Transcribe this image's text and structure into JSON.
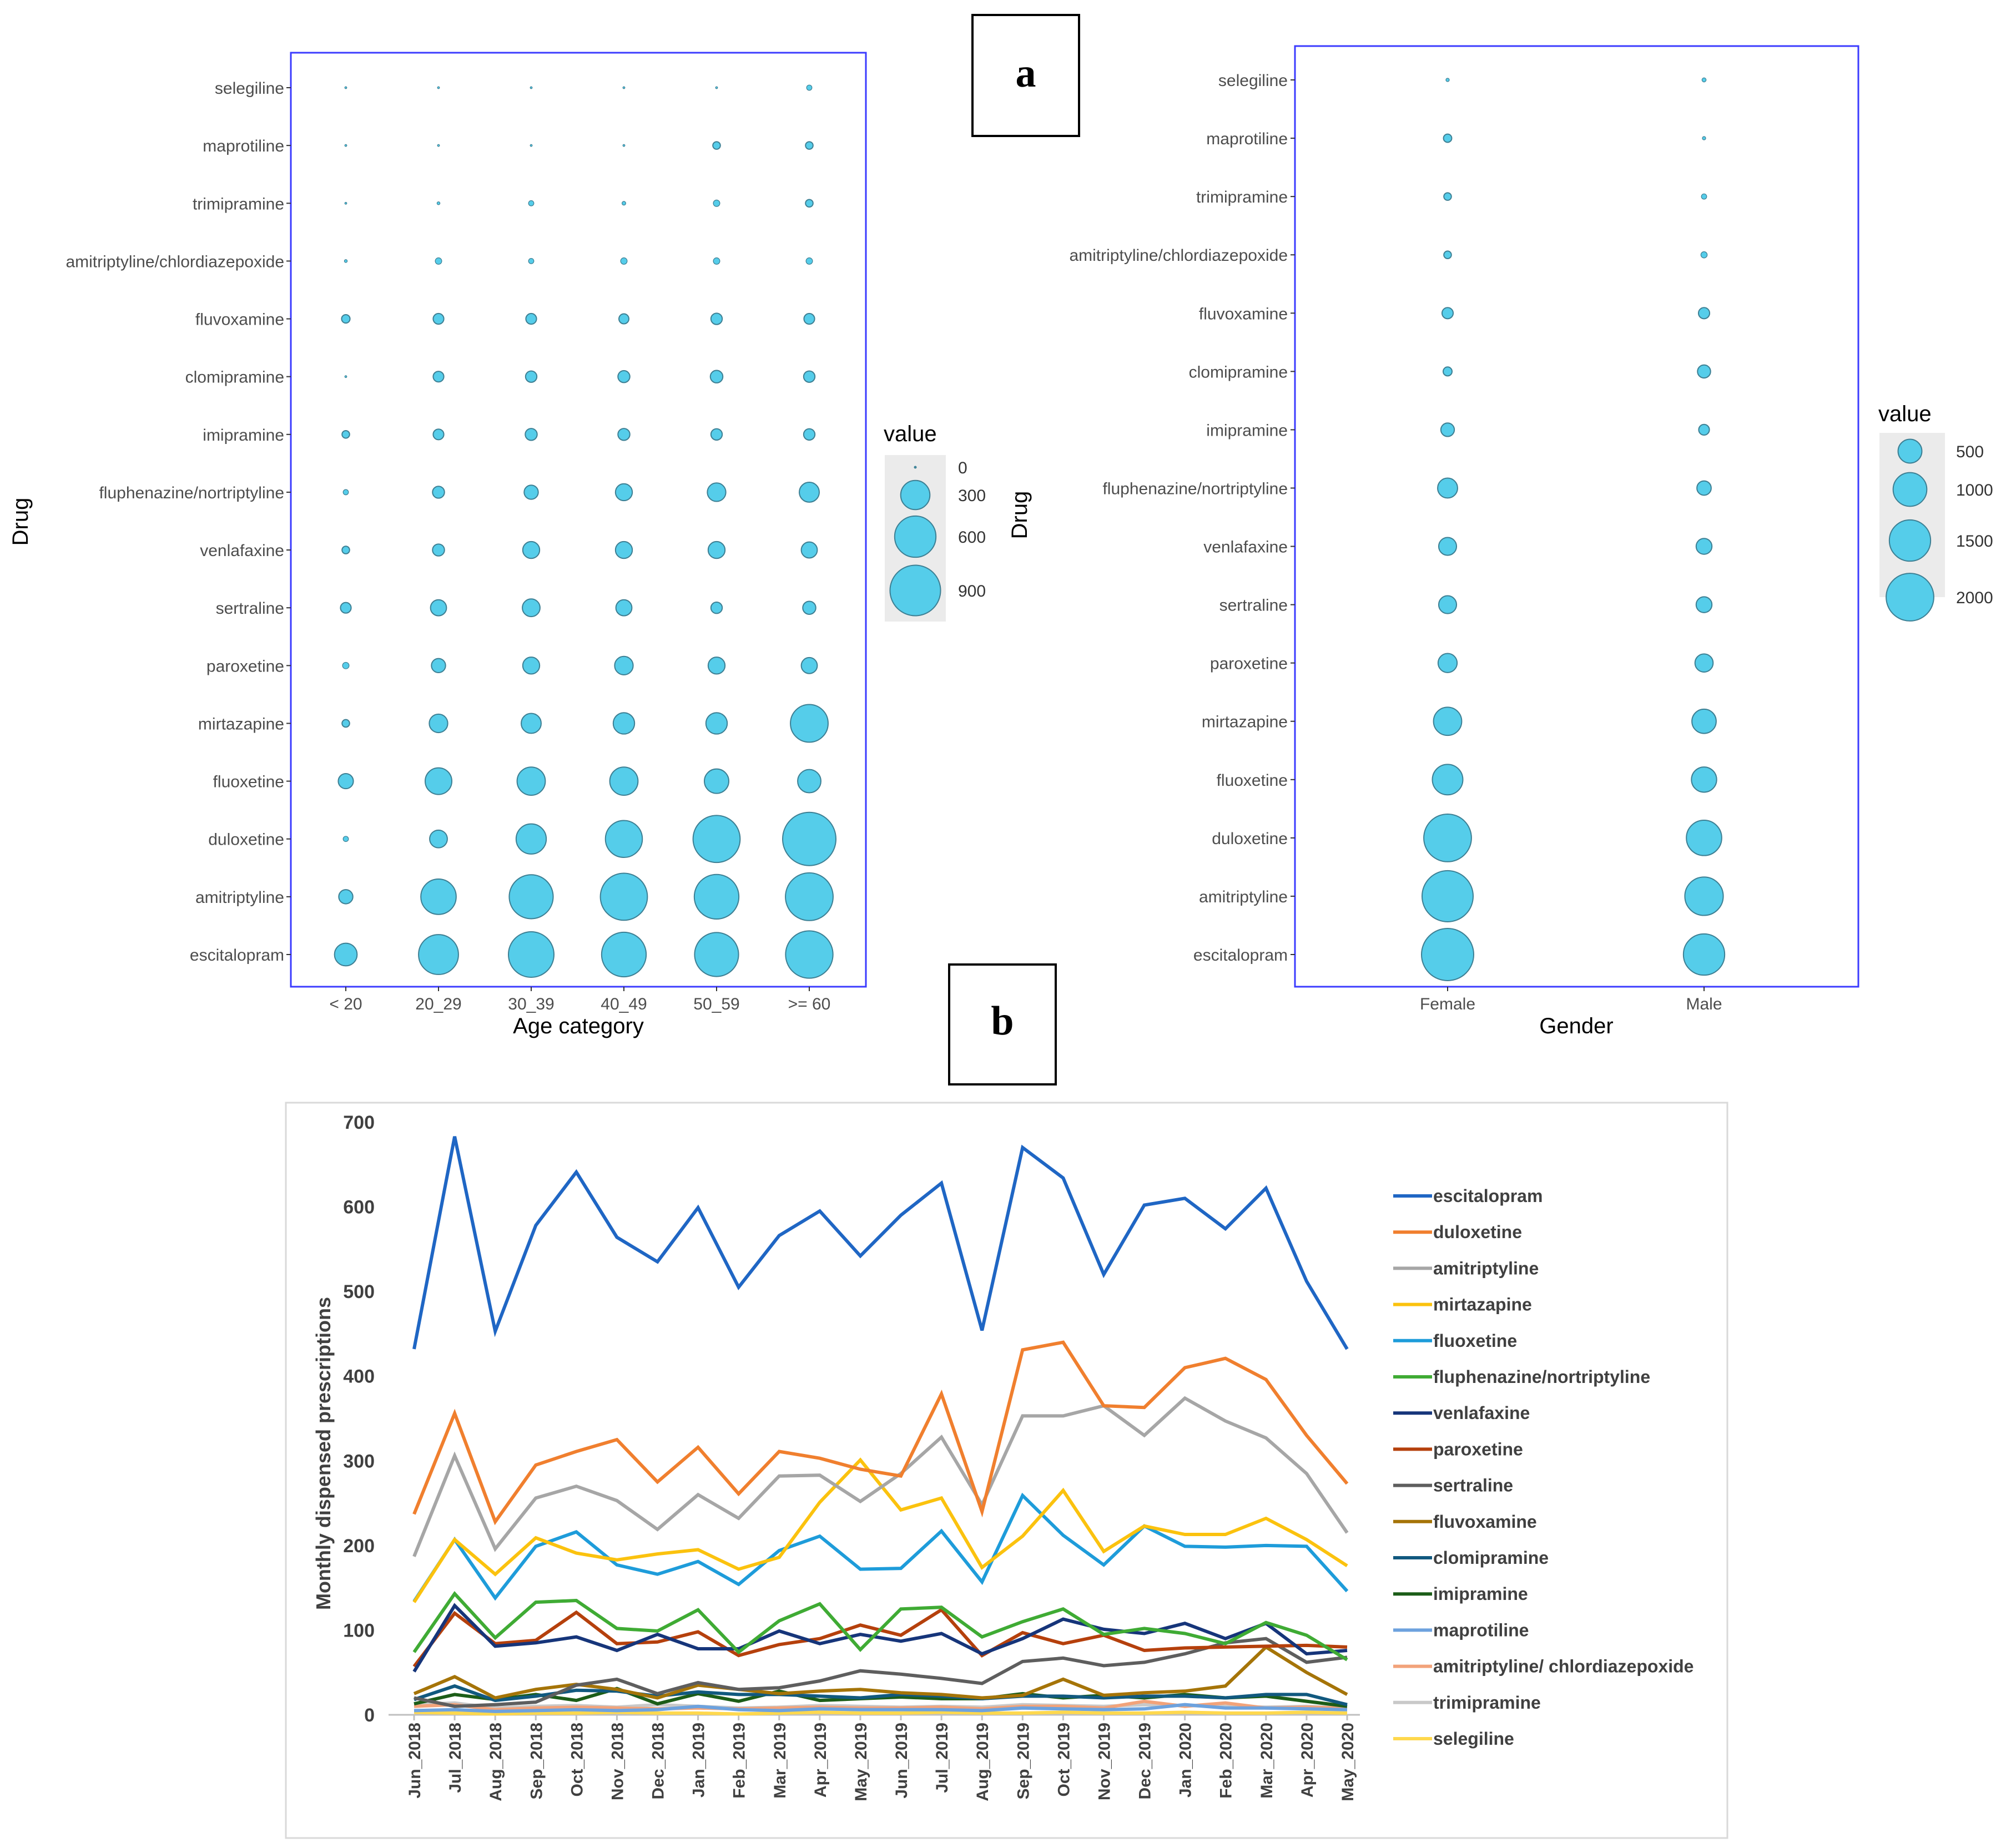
{
  "panel_labels": {
    "a": "a",
    "b": "b"
  },
  "colors": {
    "bubble_fill": "#55cdea",
    "bubble_stroke": "#3d7f93",
    "frame": "#3b3bff",
    "axis_text": "#4d4d4d",
    "legend_bg": "#ebebeb",
    "line_axis": "#bfbfbf",
    "line_panel_border": "#d9d9d9"
  },
  "chart_data": [
    {
      "id": "age",
      "type": "scatter",
      "title": "",
      "xlabel": "Age category",
      "ylabel": "Drug",
      "categories": [
        "< 20",
        "20_29",
        "30_39",
        "40_49",
        "50_59",
        ">= 60"
      ],
      "drugs": [
        "selegiline",
        "maprotiline",
        "trimipramine",
        "amitriptyline/chlordiazepoxide",
        "fluvoxamine",
        "clomipramine",
        "imipramine",
        "fluphenazine/nortriptyline",
        "venlafaxine",
        "sertraline",
        "paroxetine",
        "mirtazapine",
        "fluoxetine",
        "duloxetine",
        "amitriptyline",
        "escitalopram"
      ],
      "values": [
        [
          0,
          0,
          0,
          1,
          1,
          10
        ],
        [
          0,
          0,
          1,
          1,
          20,
          20
        ],
        [
          0,
          3,
          10,
          5,
          15,
          20
        ],
        [
          3,
          15,
          10,
          15,
          15,
          15
        ],
        [
          25,
          40,
          40,
          35,
          45,
          40
        ],
        [
          1,
          40,
          45,
          50,
          55,
          45
        ],
        [
          20,
          40,
          50,
          50,
          45,
          45
        ],
        [
          10,
          50,
          70,
          100,
          120,
          140
        ],
        [
          20,
          50,
          100,
          100,
          100,
          90
        ],
        [
          40,
          90,
          110,
          90,
          45,
          60
        ],
        [
          15,
          70,
          100,
          120,
          100,
          90
        ],
        [
          20,
          120,
          140,
          160,
          160,
          500
        ],
        [
          80,
          250,
          280,
          280,
          210,
          190
        ],
        [
          10,
          110,
          320,
          480,
          780,
          1000
        ],
        [
          70,
          440,
          680,
          780,
          700,
          800
        ],
        [
          180,
          560,
          730,
          700,
          680,
          790
        ]
      ],
      "legend": {
        "title": "value",
        "breaks": [
          0,
          300,
          600,
          900
        ],
        "labels": [
          "0",
          "300",
          "600",
          "900"
        ],
        "max_value": 1000
      }
    },
    {
      "id": "gender",
      "type": "scatter",
      "title": "",
      "xlabel": "Gender",
      "ylabel": "Drug",
      "categories": [
        "Female",
        "Male"
      ],
      "drugs": [
        "selegiline",
        "maprotiline",
        "trimipramine",
        "amitriptyline/chlordiazepoxide",
        "fluvoxamine",
        "clomipramine",
        "imipramine",
        "fluphenazine/nortriptyline",
        "venlafaxine",
        "sertraline",
        "paroxetine",
        "mirtazapine",
        "fluoxetine",
        "duloxetine",
        "amitriptyline",
        "escitalopram"
      ],
      "values": [
        [
          10,
          15
        ],
        [
          60,
          10
        ],
        [
          50,
          25
        ],
        [
          50,
          35
        ],
        [
          110,
          110
        ],
        [
          70,
          150
        ],
        [
          160,
          100
        ],
        [
          350,
          180
        ],
        [
          280,
          220
        ],
        [
          280,
          220
        ],
        [
          320,
          290
        ],
        [
          700,
          520
        ],
        [
          820,
          560
        ],
        [
          2000,
          1100
        ],
        [
          2300,
          1300
        ],
        [
          2400,
          1500
        ]
      ],
      "legend": {
        "title": "value",
        "breaks": [
          500,
          1000,
          1500,
          2000
        ],
        "labels": [
          "500",
          "1000",
          "1500",
          "2000"
        ],
        "max_value": 2400
      }
    },
    {
      "id": "monthly",
      "type": "line",
      "title": "",
      "xlabel": "",
      "ylabel": "Monthly dispensed prescriptions",
      "ylim": [
        0,
        700
      ],
      "yticks": [
        0,
        100,
        200,
        300,
        400,
        500,
        600,
        700
      ],
      "categories": [
        "Jun_2018",
        "Jul_2018",
        "Aug_2018",
        "Sep_2018",
        "Oct_2018",
        "Nov_2018",
        "Dec_2018",
        "Jan_2019",
        "Feb_2019",
        "Mar_2019",
        "Apr_2019",
        "May_2019",
        "Jun_2019",
        "Jul_2019",
        "Aug_2019",
        "Sep_2019",
        "Oct_2019",
        "Nov_2019",
        "Dec_2019",
        "Jan_2020",
        "Feb_2020",
        "Mar_2020",
        "Apr_2020",
        "May_2020"
      ],
      "series": [
        {
          "name": "escitalopram",
          "color": "#1f66c4",
          "values": [
            432,
            683,
            453,
            578,
            641,
            564,
            535,
            599,
            505,
            566,
            595,
            542,
            590,
            628,
            454,
            670,
            634,
            520,
            602,
            610,
            574,
            622,
            512,
            432
          ]
        },
        {
          "name": "duloxetine",
          "color": "#f07f2e",
          "values": [
            237,
            356,
            228,
            295,
            311,
            325,
            275,
            316,
            261,
            311,
            303,
            290,
            282,
            379,
            240,
            431,
            440,
            365,
            363,
            410,
            421,
            396,
            330,
            273
          ]
        },
        {
          "name": "amitriptyline",
          "color": "#a6a6a6",
          "values": [
            187,
            306,
            196,
            256,
            270,
            253,
            219,
            260,
            232,
            282,
            283,
            252,
            285,
            328,
            248,
            353,
            353,
            365,
            330,
            374,
            347,
            327,
            285,
            215
          ]
        },
        {
          "name": "mirtazapine",
          "color": "#fbc20e",
          "values": [
            133,
            207,
            166,
            209,
            191,
            183,
            190,
            195,
            172,
            186,
            251,
            301,
            242,
            256,
            174,
            211,
            265,
            193,
            223,
            213,
            213,
            232,
            207,
            176
          ]
        },
        {
          "name": "fluoxetine",
          "color": "#1e9cda",
          "values": [
            134,
            207,
            138,
            199,
            216,
            177,
            166,
            181,
            154,
            194,
            211,
            172,
            173,
            217,
            157,
            259,
            212,
            177,
            223,
            199,
            198,
            200,
            199,
            146
          ]
        },
        {
          "name": "fluphenazine/nortriptyline",
          "color": "#3fab34",
          "values": [
            74,
            143,
            91,
            133,
            135,
            102,
            99,
            124,
            74,
            111,
            131,
            77,
            125,
            127,
            92,
            110,
            125,
            95,
            102,
            96,
            84,
            109,
            94,
            65
          ]
        },
        {
          "name": "venlafaxine",
          "color": "#16357a",
          "values": [
            51,
            129,
            81,
            85,
            92,
            76,
            95,
            78,
            78,
            99,
            84,
            95,
            87,
            96,
            72,
            90,
            113,
            101,
            96,
            108,
            90,
            108,
            72,
            76
          ]
        },
        {
          "name": "paroxetine",
          "color": "#b5400c",
          "values": [
            57,
            120,
            84,
            88,
            121,
            84,
            86,
            98,
            70,
            83,
            90,
            106,
            94,
            124,
            70,
            97,
            84,
            94,
            76,
            79,
            80,
            81,
            82,
            80
          ]
        },
        {
          "name": "sertraline",
          "color": "#5e5e5e",
          "values": [
            20,
            10,
            12,
            15,
            35,
            42,
            25,
            38,
            30,
            32,
            40,
            52,
            48,
            43,
            37,
            63,
            67,
            58,
            62,
            72,
            85,
            90,
            62,
            68
          ]
        },
        {
          "name": "fluvoxamine",
          "color": "#a57408",
          "values": [
            25,
            45,
            20,
            30,
            36,
            30,
            20,
            35,
            30,
            25,
            28,
            30,
            26,
            24,
            20,
            23,
            42,
            23,
            26,
            28,
            34,
            80,
            50,
            24
          ]
        },
        {
          "name": "clomipramine",
          "color": "#11597f",
          "values": [
            18,
            34,
            17,
            22,
            29,
            28,
            22,
            27,
            24,
            24,
            22,
            20,
            24,
            22,
            19,
            22,
            22,
            20,
            22,
            22,
            20,
            24,
            24,
            12
          ]
        },
        {
          "name": "imipramine",
          "color": "#1c5d18",
          "values": [
            13,
            24,
            18,
            24,
            17,
            31,
            13,
            25,
            16,
            28,
            17,
            19,
            21,
            19,
            19,
            25,
            20,
            23,
            20,
            24,
            20,
            22,
            16,
            10
          ]
        },
        {
          "name": "maprotiline",
          "color": "#6da2de",
          "values": [
            5,
            6,
            4,
            5,
            6,
            5,
            6,
            10,
            6,
            5,
            7,
            6,
            6,
            6,
            5,
            8,
            7,
            6,
            7,
            12,
            8,
            8,
            7,
            6
          ]
        },
        {
          "name": "amitriptyline/ chlordiazepoxide",
          "color": "#f2a37a",
          "values": [
            10,
            12,
            6,
            8,
            9,
            8,
            7,
            8,
            7,
            8,
            9,
            8,
            8,
            9,
            7,
            10,
            10,
            8,
            16,
            10,
            14,
            8,
            9,
            8
          ]
        },
        {
          "name": "trimipramine",
          "color": "#c9c9c9",
          "values": [
            12,
            14,
            8,
            10,
            11,
            9,
            12,
            10,
            8,
            9,
            11,
            10,
            9,
            10,
            9,
            12,
            11,
            10,
            12,
            11,
            10,
            9,
            10,
            8
          ]
        },
        {
          "name": "selegiline",
          "color": "#ffd84d",
          "values": [
            3,
            2,
            1,
            2,
            2,
            3,
            2,
            2,
            1,
            2,
            3,
            2,
            2,
            3,
            2,
            2,
            3,
            2,
            2,
            3,
            2,
            2,
            3,
            2
          ]
        }
      ]
    }
  ]
}
